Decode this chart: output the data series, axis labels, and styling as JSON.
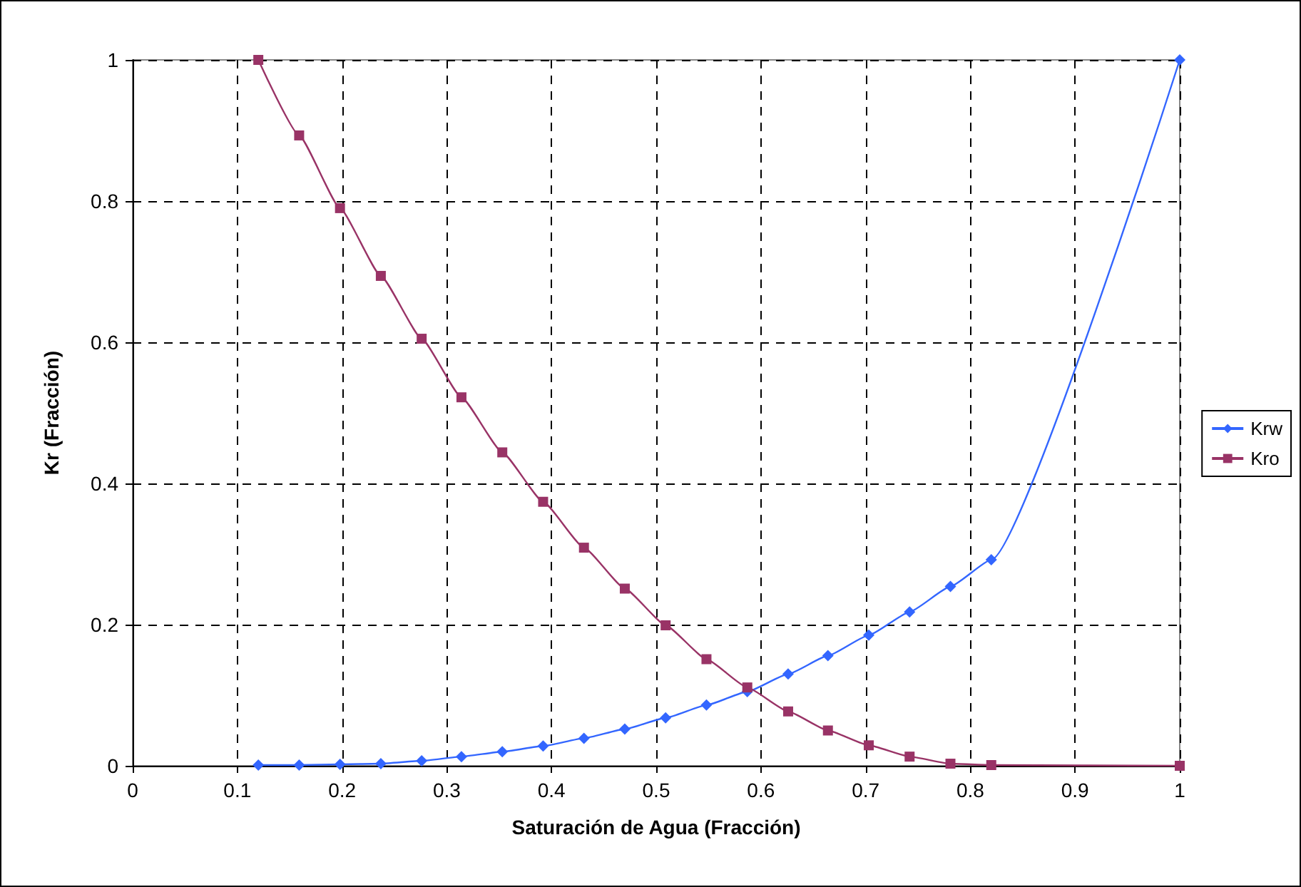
{
  "chart_data": {
    "type": "line",
    "xlabel": "Saturación de Agua (Fracción)",
    "ylabel": "Kr (Fracción)",
    "xlim": [
      0,
      1
    ],
    "xticks": [
      0,
      0.1,
      0.2,
      0.3,
      0.4,
      0.5,
      0.6,
      0.7,
      0.8,
      0.9,
      1
    ],
    "ylim": [
      0,
      1
    ],
    "yticks": [
      0,
      0.2,
      0.4,
      0.6,
      0.8,
      1
    ],
    "grid": true,
    "legend": "right",
    "series": [
      {
        "name": "Krw",
        "color": "#3366ff",
        "marker": "diamond",
        "x": [
          0.12,
          0.159,
          0.198,
          0.237,
          0.276,
          0.314,
          0.353,
          0.392,
          0.431,
          0.47,
          0.509,
          0.548,
          0.587,
          0.626,
          0.664,
          0.703,
          0.742,
          0.781,
          0.82,
          1
        ],
        "values": [
          0.001,
          0.001,
          0.002,
          0.003,
          0.007,
          0.013,
          0.02,
          0.028,
          0.039,
          0.052,
          0.068,
          0.086,
          0.105,
          0.13,
          0.156,
          0.185,
          0.218,
          0.254,
          0.292,
          1
        ]
      },
      {
        "name": "Kro",
        "color": "#993366",
        "marker": "square",
        "x": [
          0.12,
          0.159,
          0.198,
          0.237,
          0.276,
          0.314,
          0.353,
          0.392,
          0.431,
          0.47,
          0.509,
          0.548,
          0.587,
          0.626,
          0.664,
          0.703,
          0.742,
          0.781,
          0.82,
          1
        ],
        "values": [
          1,
          0.893,
          0.79,
          0.694,
          0.605,
          0.522,
          0.444,
          0.374,
          0.309,
          0.251,
          0.199,
          0.151,
          0.111,
          0.077,
          0.05,
          0.029,
          0.013,
          0.003,
          0.001,
          0
        ]
      }
    ]
  }
}
